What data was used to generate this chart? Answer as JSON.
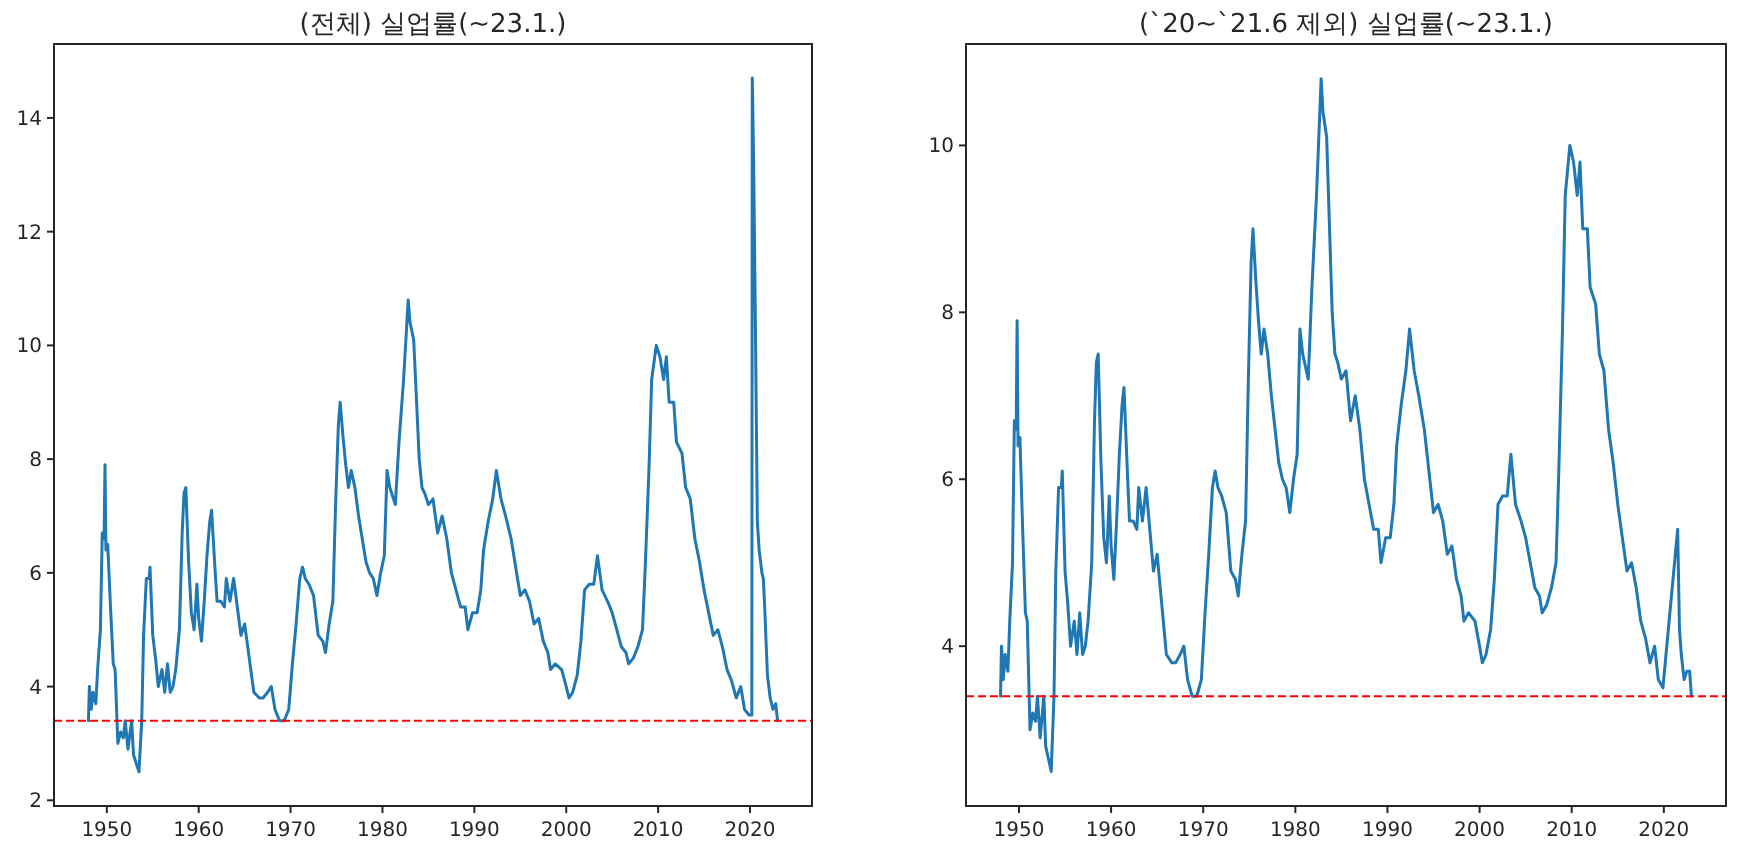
{
  "chart_data": [
    {
      "type": "line",
      "title": "(전체) 실업률(~23.1.)",
      "xlim": [
        1944.25,
        2026.75
      ],
      "xticks": [
        1950,
        1960,
        1970,
        1980,
        1990,
        2000,
        2010,
        2020
      ],
      "ylim": [
        1.9,
        15.3
      ],
      "yticks": [
        2,
        4,
        6,
        8,
        10,
        12,
        14
      ],
      "grid": false,
      "marker": "none",
      "line_style": "solid",
      "ref_lines": [
        {
          "axis": "y",
          "value": 3.4,
          "color": "#ff0000",
          "line_style": "dashed"
        }
      ],
      "series": [
        {
          "color": "#1f77b4",
          "x": [
            1948.0,
            1948.1,
            1948.3,
            1948.5,
            1948.8,
            1949.0,
            1949.3,
            1949.5,
            1949.7,
            1949.8,
            1949.9,
            1950.1,
            1950.4,
            1950.7,
            1950.9,
            1951.2,
            1951.5,
            1951.8,
            1952.0,
            1952.3,
            1952.7,
            1952.9,
            1953.3,
            1953.5,
            1953.8,
            1954.0,
            1954.3,
            1954.6,
            1954.7,
            1955.0,
            1955.3,
            1955.6,
            1956.0,
            1956.3,
            1956.6,
            1956.9,
            1957.2,
            1957.5,
            1957.9,
            1958.2,
            1958.4,
            1958.6,
            1958.9,
            1959.2,
            1959.5,
            1959.8,
            1960.0,
            1960.3,
            1960.6,
            1960.9,
            1961.2,
            1961.4,
            1961.8,
            1962.0,
            1962.4,
            1962.8,
            1963.0,
            1963.4,
            1963.8,
            1964.2,
            1964.6,
            1965.0,
            1965.5,
            1966.0,
            1966.6,
            1967.0,
            1967.5,
            1967.9,
            1968.3,
            1968.8,
            1969.3,
            1969.8,
            1970.2,
            1970.6,
            1971.0,
            1971.3,
            1971.6,
            1972.0,
            1972.5,
            1973.0,
            1973.5,
            1973.8,
            1974.2,
            1974.6,
            1974.9,
            1975.2,
            1975.4,
            1975.7,
            1976.0,
            1976.3,
            1976.6,
            1977.0,
            1977.4,
            1977.8,
            1978.2,
            1978.6,
            1979.0,
            1979.4,
            1979.8,
            1980.2,
            1980.5,
            1980.8,
            1981.0,
            1981.4,
            1981.8,
            1982.3,
            1982.8,
            1983.0,
            1983.4,
            1983.6,
            1984.0,
            1984.3,
            1984.6,
            1985.0,
            1985.5,
            1986.0,
            1986.5,
            1987.0,
            1987.5,
            1988.0,
            1988.5,
            1989.0,
            1989.3,
            1989.8,
            1990.3,
            1990.7,
            1991.0,
            1991.5,
            1992.0,
            1992.4,
            1992.9,
            1993.4,
            1994.0,
            1994.5,
            1995.0,
            1995.5,
            1996.0,
            1996.5,
            1997.0,
            1997.5,
            1998.0,
            1998.3,
            1998.8,
            1999.5,
            2000.0,
            2000.3,
            2000.7,
            2001.2,
            2001.6,
            2002.0,
            2002.5,
            2003.0,
            2003.4,
            2003.9,
            2004.5,
            2005.0,
            2005.5,
            2006.0,
            2006.5,
            2006.8,
            2007.3,
            2007.8,
            2008.3,
            2008.6,
            2009.0,
            2009.3,
            2009.8,
            2010.2,
            2010.6,
            2010.9,
            2011.2,
            2011.7,
            2012.0,
            2012.6,
            2013.0,
            2013.5,
            2014.0,
            2014.5,
            2015.0,
            2015.5,
            2016.0,
            2016.5,
            2017.0,
            2017.5,
            2018.0,
            2018.5,
            2019.0,
            2019.4,
            2019.9,
            2020.2,
            2020.25,
            2020.4,
            2020.6,
            2020.8,
            2021.0,
            2021.3,
            2021.45,
            2021.6,
            2021.9,
            2022.2,
            2022.5,
            2022.8,
            2023.0
          ],
          "values": [
            3.4,
            4.0,
            3.6,
            3.9,
            3.7,
            4.3,
            5.0,
            6.7,
            6.6,
            7.9,
            6.4,
            6.5,
            5.4,
            4.4,
            4.3,
            3.0,
            3.2,
            3.1,
            3.4,
            2.9,
            3.4,
            2.8,
            2.6,
            2.5,
            3.4,
            4.9,
            5.9,
            5.9,
            6.1,
            4.9,
            4.5,
            4.0,
            4.3,
            3.9,
            4.4,
            3.9,
            4.0,
            4.3,
            5.0,
            6.7,
            7.4,
            7.5,
            6.2,
            5.3,
            5.0,
            5.8,
            5.2,
            4.8,
            5.5,
            6.3,
            6.9,
            7.1,
            6.0,
            5.5,
            5.5,
            5.4,
            5.9,
            5.5,
            5.9,
            5.4,
            4.9,
            5.1,
            4.5,
            3.9,
            3.8,
            3.8,
            3.9,
            4.0,
            3.6,
            3.4,
            3.4,
            3.6,
            4.4,
            5.1,
            5.9,
            6.1,
            5.9,
            5.8,
            5.6,
            4.9,
            4.8,
            4.6,
            5.1,
            5.5,
            7.2,
            8.6,
            9.0,
            8.4,
            7.9,
            7.5,
            7.8,
            7.5,
            7.0,
            6.6,
            6.2,
            6.0,
            5.9,
            5.6,
            6.0,
            6.3,
            7.8,
            7.5,
            7.4,
            7.2,
            8.3,
            9.4,
            10.8,
            10.4,
            10.1,
            9.4,
            8.0,
            7.5,
            7.4,
            7.2,
            7.3,
            6.7,
            7.0,
            6.6,
            6.0,
            5.7,
            5.4,
            5.4,
            5.0,
            5.3,
            5.3,
            5.7,
            6.4,
            6.9,
            7.3,
            7.8,
            7.3,
            7.0,
            6.6,
            6.1,
            5.6,
            5.7,
            5.5,
            5.1,
            5.2,
            4.8,
            4.6,
            4.3,
            4.4,
            4.3,
            4.0,
            3.8,
            3.9,
            4.2,
            4.8,
            5.7,
            5.8,
            5.8,
            6.3,
            5.7,
            5.5,
            5.3,
            5.0,
            4.7,
            4.6,
            4.4,
            4.5,
            4.7,
            5.0,
            6.1,
            7.8,
            9.4,
            10.0,
            9.8,
            9.4,
            9.8,
            9.0,
            9.0,
            8.3,
            8.1,
            7.5,
            7.3,
            6.6,
            6.2,
            5.7,
            5.3,
            4.9,
            5.0,
            4.7,
            4.3,
            4.1,
            3.8,
            4.0,
            3.6,
            3.5,
            3.5,
            14.7,
            13.2,
            10.2,
            6.9,
            6.4,
            6.0,
            5.9,
            5.4,
            4.2,
            3.8,
            3.6,
            3.7,
            3.4
          ]
        }
      ]
    },
    {
      "type": "line",
      "title": "(`20~`21.6 제외) 실업률(~23.1.)",
      "xlim": [
        1944.25,
        2026.75
      ],
      "xticks": [
        1950,
        1960,
        1970,
        1980,
        1990,
        2000,
        2010,
        2020
      ],
      "ylim": [
        2.085,
        11.215
      ],
      "yticks": [
        4,
        6,
        8,
        10
      ],
      "grid": false,
      "marker": "none",
      "line_style": "solid",
      "ref_lines": [
        {
          "axis": "y",
          "value": 3.4,
          "color": "#ff0000",
          "line_style": "dashed"
        }
      ],
      "series": [
        {
          "color": "#1f77b4",
          "x": [
            1948.0,
            1948.1,
            1948.3,
            1948.5,
            1948.8,
            1949.0,
            1949.3,
            1949.5,
            1949.7,
            1949.8,
            1949.9,
            1950.1,
            1950.4,
            1950.7,
            1950.9,
            1951.2,
            1951.5,
            1951.8,
            1952.0,
            1952.3,
            1952.7,
            1952.9,
            1953.3,
            1953.5,
            1953.8,
            1954.0,
            1954.3,
            1954.6,
            1954.7,
            1955.0,
            1955.3,
            1955.6,
            1956.0,
            1956.3,
            1956.6,
            1956.9,
            1957.2,
            1957.5,
            1957.9,
            1958.2,
            1958.4,
            1958.6,
            1958.9,
            1959.2,
            1959.5,
            1959.8,
            1960.0,
            1960.3,
            1960.6,
            1960.9,
            1961.2,
            1961.4,
            1961.8,
            1962.0,
            1962.4,
            1962.8,
            1963.0,
            1963.4,
            1963.8,
            1964.2,
            1964.6,
            1965.0,
            1965.5,
            1966.0,
            1966.6,
            1967.0,
            1967.5,
            1967.9,
            1968.3,
            1968.8,
            1969.3,
            1969.8,
            1970.2,
            1970.6,
            1971.0,
            1971.3,
            1971.6,
            1972.0,
            1972.5,
            1973.0,
            1973.5,
            1973.8,
            1974.2,
            1974.6,
            1974.9,
            1975.2,
            1975.4,
            1975.7,
            1976.0,
            1976.3,
            1976.6,
            1977.0,
            1977.4,
            1977.8,
            1978.2,
            1978.6,
            1979.0,
            1979.4,
            1979.8,
            1980.2,
            1980.5,
            1980.8,
            1981.0,
            1981.4,
            1981.8,
            1982.3,
            1982.8,
            1983.0,
            1983.4,
            1983.6,
            1984.0,
            1984.3,
            1984.6,
            1985.0,
            1985.5,
            1986.0,
            1986.5,
            1987.0,
            1987.5,
            1988.0,
            1988.5,
            1989.0,
            1989.3,
            1989.8,
            1990.3,
            1990.7,
            1991.0,
            1991.5,
            1992.0,
            1992.4,
            1992.9,
            1993.4,
            1994.0,
            1994.5,
            1995.0,
            1995.5,
            1996.0,
            1996.5,
            1997.0,
            1997.5,
            1998.0,
            1998.3,
            1998.8,
            1999.5,
            2000.0,
            2000.3,
            2000.7,
            2001.2,
            2001.6,
            2002.0,
            2002.5,
            2003.0,
            2003.4,
            2003.9,
            2004.5,
            2005.0,
            2005.5,
            2006.0,
            2006.5,
            2006.8,
            2007.3,
            2007.8,
            2008.3,
            2008.6,
            2009.0,
            2009.3,
            2009.8,
            2010.2,
            2010.6,
            2010.9,
            2011.2,
            2011.7,
            2012.0,
            2012.6,
            2013.0,
            2013.5,
            2014.0,
            2014.5,
            2015.0,
            2015.5,
            2016.0,
            2016.5,
            2017.0,
            2017.5,
            2018.0,
            2018.5,
            2019.0,
            2019.4,
            2019.9,
            2021.5,
            2021.7,
            2021.9,
            2022.2,
            2022.5,
            2022.8,
            2023.0
          ],
          "values": [
            3.4,
            4.0,
            3.6,
            3.9,
            3.7,
            4.3,
            5.0,
            6.7,
            6.6,
            7.9,
            6.4,
            6.5,
            5.4,
            4.4,
            4.3,
            3.0,
            3.2,
            3.1,
            3.4,
            2.9,
            3.4,
            2.8,
            2.6,
            2.5,
            3.4,
            4.9,
            5.9,
            5.9,
            6.1,
            4.9,
            4.5,
            4.0,
            4.3,
            3.9,
            4.4,
            3.9,
            4.0,
            4.3,
            5.0,
            6.7,
            7.4,
            7.5,
            6.2,
            5.3,
            5.0,
            5.8,
            5.2,
            4.8,
            5.5,
            6.3,
            6.9,
            7.1,
            6.0,
            5.5,
            5.5,
            5.4,
            5.9,
            5.5,
            5.9,
            5.4,
            4.9,
            5.1,
            4.5,
            3.9,
            3.8,
            3.8,
            3.9,
            4.0,
            3.6,
            3.4,
            3.4,
            3.6,
            4.4,
            5.1,
            5.9,
            6.1,
            5.9,
            5.8,
            5.6,
            4.9,
            4.8,
            4.6,
            5.1,
            5.5,
            7.2,
            8.6,
            9.0,
            8.4,
            7.9,
            7.5,
            7.8,
            7.5,
            7.0,
            6.6,
            6.2,
            6.0,
            5.9,
            5.6,
            6.0,
            6.3,
            7.8,
            7.5,
            7.4,
            7.2,
            8.3,
            9.4,
            10.8,
            10.4,
            10.1,
            9.4,
            8.0,
            7.5,
            7.4,
            7.2,
            7.3,
            6.7,
            7.0,
            6.6,
            6.0,
            5.7,
            5.4,
            5.4,
            5.0,
            5.3,
            5.3,
            5.7,
            6.4,
            6.9,
            7.3,
            7.8,
            7.3,
            7.0,
            6.6,
            6.1,
            5.6,
            5.7,
            5.5,
            5.1,
            5.2,
            4.8,
            4.6,
            4.3,
            4.4,
            4.3,
            4.0,
            3.8,
            3.9,
            4.2,
            4.8,
            5.7,
            5.8,
            5.8,
            6.3,
            5.7,
            5.5,
            5.3,
            5.0,
            4.7,
            4.6,
            4.4,
            4.5,
            4.7,
            5.0,
            6.1,
            7.8,
            9.4,
            10.0,
            9.8,
            9.4,
            9.8,
            9.0,
            9.0,
            8.3,
            8.1,
            7.5,
            7.3,
            6.6,
            6.2,
            5.7,
            5.3,
            4.9,
            5.0,
            4.7,
            4.3,
            4.1,
            3.8,
            4.0,
            3.6,
            3.5,
            5.4,
            4.2,
            3.9,
            3.6,
            3.7,
            3.7,
            3.4
          ]
        }
      ]
    }
  ]
}
